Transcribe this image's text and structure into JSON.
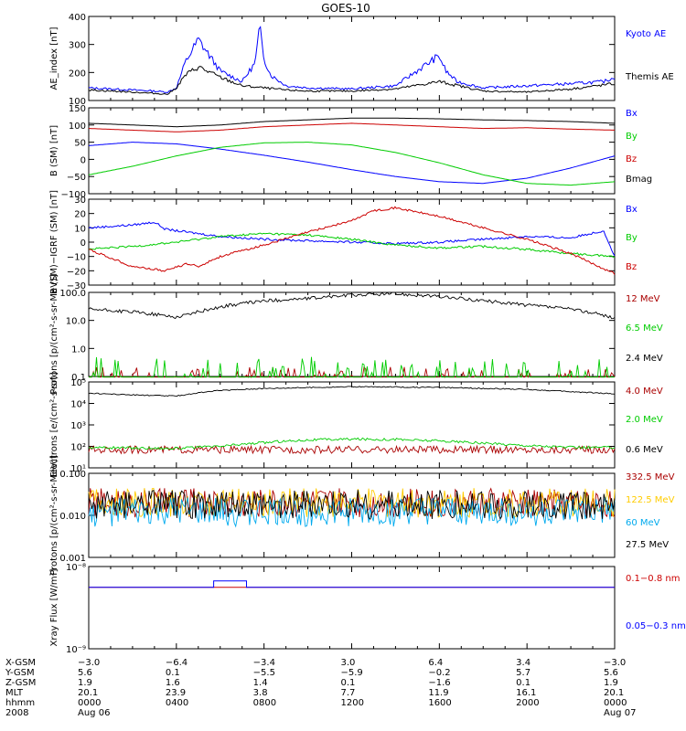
{
  "chart_data": [
    {
      "type": "line",
      "title": "GOES-10",
      "ylabel": "AE_index [nT]",
      "ylim": [
        0,
        400
      ],
      "yticks": [
        "400",
        "300",
        "200",
        "100"
      ],
      "series": [
        {
          "name": "Kyoto AE",
          "color": "#0000ff",
          "x": [
            0,
            2,
            3,
            3.6,
            4.0,
            4.4,
            5.0,
            6.0,
            7.0,
            7.6,
            7.8,
            8.0,
            8.3,
            8.6,
            9.0,
            10,
            12,
            14,
            15.8,
            16,
            16.3,
            16.8,
            18,
            20,
            22,
            23.5,
            24
          ],
          "values": [
            60,
            50,
            45,
            40,
            60,
            180,
            290,
            140,
            90,
            180,
            350,
            200,
            120,
            100,
            70,
            60,
            55,
            70,
            200,
            210,
            140,
            90,
            60,
            70,
            80,
            90,
            110
          ]
        },
        {
          "name": "Themis AE",
          "color": "#000000",
          "x": [
            0,
            2,
            3.6,
            4.0,
            4.4,
            5.0,
            6.0,
            7.0,
            8.0,
            9,
            10,
            12,
            14,
            16,
            18,
            20,
            22,
            24
          ],
          "values": [
            50,
            40,
            30,
            60,
            120,
            160,
            110,
            70,
            60,
            50,
            45,
            45,
            55,
            90,
            45,
            40,
            55,
            80
          ]
        }
      ]
    },
    {
      "type": "line",
      "ylabel": "B (SM) [nT]",
      "ylim": [
        -100,
        150
      ],
      "yticks": [
        "150",
        "100",
        "50",
        "0",
        "−50",
        "−100"
      ],
      "series": [
        {
          "name": "Bx",
          "color": "#0000ff",
          "x": [
            0,
            2,
            4,
            6,
            8,
            10,
            12,
            14,
            16,
            18,
            20,
            22,
            24
          ],
          "values": [
            40,
            50,
            45,
            30,
            12,
            -8,
            -30,
            -50,
            -65,
            -70,
            -55,
            -25,
            10
          ]
        },
        {
          "name": "By",
          "color": "#00cc00",
          "x": [
            0,
            2,
            4,
            6,
            8,
            10,
            12,
            14,
            16,
            18,
            20,
            22,
            24
          ],
          "values": [
            -45,
            -20,
            10,
            35,
            48,
            50,
            42,
            20,
            -10,
            -45,
            -70,
            -75,
            -65
          ]
        },
        {
          "name": "Bz",
          "color": "#cc0000",
          "x": [
            0,
            2,
            4,
            6,
            8,
            10,
            12,
            14,
            16,
            18,
            20,
            22,
            24
          ],
          "values": [
            90,
            85,
            80,
            85,
            95,
            100,
            105,
            100,
            95,
            90,
            92,
            88,
            85
          ]
        },
        {
          "name": "Bmag",
          "color": "#000000",
          "x": [
            0,
            2,
            4,
            6,
            8,
            10,
            12,
            14,
            16,
            18,
            20,
            22,
            24
          ],
          "values": [
            105,
            100,
            95,
            100,
            110,
            115,
            120,
            120,
            118,
            115,
            113,
            110,
            105
          ]
        }
      ]
    },
    {
      "type": "line",
      "ylabel": "B (SM)−IGRF (SM) [nT]",
      "ylim": [
        -30,
        30
      ],
      "yticks": [
        "30",
        "20",
        "10",
        "0",
        "−10",
        "−20",
        "−30"
      ],
      "series": [
        {
          "name": "Bx",
          "color": "#0000ff",
          "x": [
            0,
            2,
            3,
            3.5,
            4,
            6,
            8,
            10,
            12,
            14,
            16,
            18,
            20,
            22,
            23.5,
            24
          ],
          "values": [
            10,
            12,
            14,
            9,
            8,
            4,
            2,
            1,
            0,
            -1,
            0,
            2,
            4,
            3,
            8,
            -10
          ]
        },
        {
          "name": "By",
          "color": "#00cc00",
          "x": [
            0,
            2,
            4,
            6,
            8,
            10,
            12,
            14,
            16,
            18,
            20,
            22,
            24
          ],
          "values": [
            -5,
            -3,
            0,
            4,
            6,
            5,
            2,
            -2,
            -4,
            -3,
            -5,
            -8,
            -10
          ]
        },
        {
          "name": "Bz",
          "color": "#cc0000",
          "x": [
            0,
            2,
            3.5,
            4.5,
            5,
            6,
            8,
            10,
            12,
            13,
            14,
            16,
            18,
            20,
            22,
            24
          ],
          "values": [
            -5,
            -17,
            -20,
            -15,
            -17,
            -10,
            -2,
            7,
            15,
            22,
            24,
            18,
            10,
            2,
            -8,
            -22
          ]
        }
      ]
    },
    {
      "type": "line",
      "ylabel": "Protons [p/(cm²-s-sr-MeV)]",
      "yscale": "log",
      "ylim": [
        0.1,
        100
      ],
      "yticks": [
        "100.0",
        "10.0",
        "1.0",
        "0.1"
      ],
      "series": [
        {
          "name": "12 MeV",
          "color": "#aa0000",
          "x": [
            0,
            24
          ],
          "values": [
            0.1,
            0.1
          ]
        },
        {
          "name": "6.5 MeV",
          "color": "#00cc00",
          "x": [
            0,
            24
          ],
          "values": [
            0.2,
            0.2
          ]
        },
        {
          "name": "2.4 MeV",
          "color": "#000000",
          "x": [
            0,
            2,
            4,
            5,
            6,
            7,
            8,
            10,
            12,
            14,
            16,
            18,
            20,
            22,
            24
          ],
          "values": [
            25,
            20,
            13,
            20,
            30,
            40,
            50,
            60,
            80,
            90,
            70,
            50,
            35,
            25,
            12
          ]
        }
      ]
    },
    {
      "type": "line",
      "ylabel": "Electrons [e/(cm²-s-sr)]",
      "yscale": "log",
      "ylim": [
        10,
        100000
      ],
      "yticks": [
        "10⁵",
        "10⁴",
        "10³",
        "10²",
        "10¹"
      ],
      "series": [
        {
          "name": "4.0 MeV",
          "color": "#aa0000",
          "x": [
            0,
            24
          ],
          "values": [
            70,
            70
          ]
        },
        {
          "name": "2.0 MeV",
          "color": "#00cc00",
          "x": [
            0,
            4,
            6,
            8,
            10,
            12,
            14,
            16,
            18,
            20,
            22,
            24
          ],
          "values": [
            90,
            80,
            100,
            150,
            200,
            220,
            210,
            180,
            140,
            110,
            90,
            90
          ]
        },
        {
          "name": "0.6 MeV",
          "color": "#000000",
          "x": [
            0,
            2,
            4,
            6,
            8,
            10,
            12,
            14,
            16,
            18,
            20,
            22,
            24
          ],
          "values": [
            30000,
            25000,
            22000,
            40000,
            50000,
            55000,
            60000,
            58000,
            55000,
            50000,
            45000,
            35000,
            28000
          ]
        }
      ]
    },
    {
      "type": "line",
      "ylabel": "Protons [p/(cm²-s-sr-MeV)]",
      "yscale": "log",
      "ylim": [
        0.001,
        0.1
      ],
      "yticks": [
        "0.100",
        "0.010",
        "0.001"
      ],
      "series": [
        {
          "name": "332.5 MeV",
          "color": "#aa0000",
          "x": [
            0,
            24
          ],
          "values": [
            0.02,
            0.02
          ]
        },
        {
          "name": "122.5 MeV",
          "color": "#ffcc00",
          "x": [
            0,
            24
          ],
          "values": [
            0.02,
            0.02
          ]
        },
        {
          "name": "60 MeV",
          "color": "#00aaee",
          "x": [
            0,
            24
          ],
          "values": [
            0.012,
            0.012
          ]
        },
        {
          "name": "27.5 MeV",
          "color": "#000000",
          "x": [
            0,
            24
          ],
          "values": [
            0.018,
            0.018
          ]
        }
      ]
    },
    {
      "type": "line",
      "ylabel": "Xray Flux [W/m²]",
      "yscale": "log",
      "ylim": [
        1e-09,
        1e-08
      ],
      "yticks": [
        "10⁻⁸",
        "10⁻⁹"
      ],
      "series": [
        {
          "name": "0.1−0.8 nm",
          "color": "#cc0000",
          "x": [
            0,
            24
          ],
          "values": [
            5.6e-09,
            5.6e-09
          ]
        },
        {
          "name": "0.05−0.3 nm",
          "color": "#0000ff",
          "x": [
            0,
            5.7,
            5.7,
            7.2,
            7.2,
            24
          ],
          "values": [
            5.6e-09,
            5.6e-09,
            6.7e-09,
            6.7e-09,
            5.6e-09,
            5.6e-09
          ]
        }
      ]
    }
  ],
  "orbit_table": {
    "row_labels": [
      "X-GSM",
      "Y-GSM",
      "Z-GSM",
      "MLT",
      "hhmm",
      "2008"
    ],
    "columns": [
      [
        "−3.0",
        "5.6",
        "1.9",
        "20.1",
        "0000",
        "Aug 06"
      ],
      [
        "−6.4",
        "0.1",
        "1.6",
        "23.9",
        "0400",
        ""
      ],
      [
        "−3.4",
        "−5.5",
        "1.4",
        "3.8",
        "0800",
        ""
      ],
      [
        "3.0",
        "−5.9",
        "0.1",
        "7.7",
        "1200",
        ""
      ],
      [
        "6.4",
        "−0.2",
        "−1.6",
        "11.9",
        "1600",
        ""
      ],
      [
        "3.4",
        "5.7",
        "0.1",
        "16.1",
        "2000",
        ""
      ],
      [
        "−3.0",
        "5.6",
        "1.9",
        "20.1",
        "0000",
        "Aug 07"
      ]
    ]
  }
}
